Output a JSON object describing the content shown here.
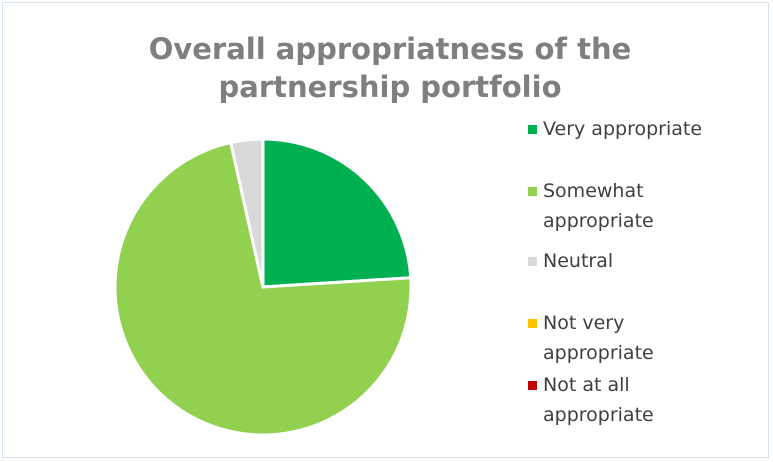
{
  "chart_data": {
    "type": "pie",
    "title": "Overall appropriatness of the partnership portfolio",
    "categories": [
      "Very appropriate",
      "Somewhat appropriate",
      "Neutral",
      "Not very appropriate",
      "Not at all appropriate"
    ],
    "values": [
      24,
      72.5,
      3.5,
      0,
      0
    ],
    "colors": [
      "#00b050",
      "#92d050",
      "#d9d9d9",
      "#ffc000",
      "#c00000"
    ],
    "legend": "right"
  }
}
